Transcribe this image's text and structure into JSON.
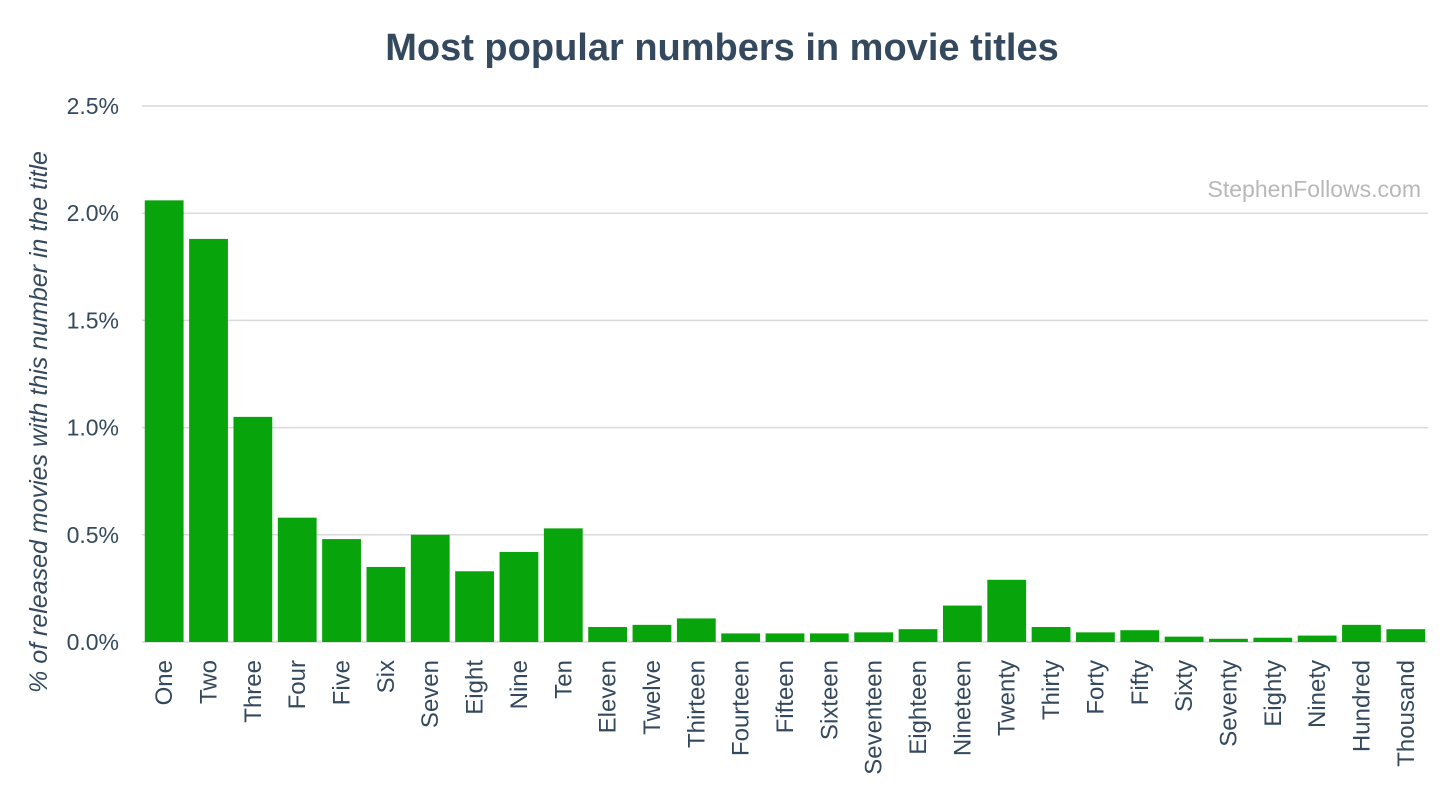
{
  "colors": {
    "bar": "#07a50b",
    "text": "#34495e",
    "grid": "#d9d9d9",
    "watermark": "#b8b8b8"
  },
  "watermark": "StephenFollows.com",
  "chart_data": {
    "type": "bar",
    "title": "Most popular numbers in movie titles",
    "xlabel": "",
    "ylabel": "% of released movies with this number in the title",
    "ylim": [
      0,
      2.5
    ],
    "yticks": [
      0,
      0.5,
      1.0,
      1.5,
      2.0,
      2.5
    ],
    "ytick_labels": [
      "0.0%",
      "0.5%",
      "1.0%",
      "1.5%",
      "2.0%",
      "2.5%"
    ],
    "grid": true,
    "categories": [
      "One",
      "Two",
      "Three",
      "Four",
      "Five",
      "Six",
      "Seven",
      "Eight",
      "Nine",
      "Ten",
      "Eleven",
      "Twelve",
      "Thirteen",
      "Fourteen",
      "Fifteen",
      "Sixteen",
      "Seventeen",
      "Eighteen",
      "Nineteen",
      "Twenty",
      "Thirty",
      "Forty",
      "Fifty",
      "Sixty",
      "Seventy",
      "Eighty",
      "Ninety",
      "Hundred",
      "Thousand"
    ],
    "values": [
      2.06,
      1.88,
      1.05,
      0.58,
      0.48,
      0.35,
      0.5,
      0.33,
      0.42,
      0.53,
      0.07,
      0.08,
      0.11,
      0.04,
      0.04,
      0.04,
      0.045,
      0.06,
      0.17,
      0.29,
      0.07,
      0.045,
      0.055,
      0.025,
      0.015,
      0.02,
      0.03,
      0.08,
      0.06
    ]
  }
}
